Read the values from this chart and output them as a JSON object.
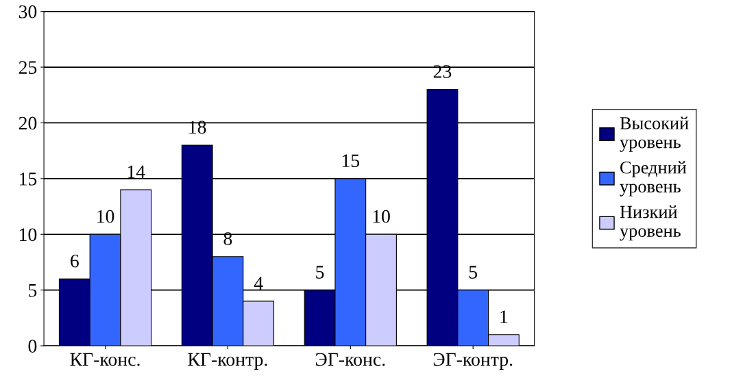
{
  "chart_data": {
    "type": "bar",
    "categories": [
      "КГ-конс.",
      "КГ-контр.",
      "ЭГ-конс.",
      "ЭГ-контр."
    ],
    "series": [
      {
        "name": "Высокий уровень",
        "color": "#000080",
        "values": [
          6,
          18,
          5,
          23
        ]
      },
      {
        "name": "Средний уровень",
        "color": "#3366ff",
        "values": [
          10,
          8,
          15,
          5
        ]
      },
      {
        "name": "Низкий уровень",
        "color": "#ccccff",
        "values": [
          14,
          4,
          10,
          1
        ]
      }
    ],
    "ylim": [
      0,
      30
    ],
    "yticks": [
      0,
      5,
      10,
      15,
      20,
      25,
      30
    ],
    "grid": "y",
    "legend": "right",
    "data_labels": true
  }
}
